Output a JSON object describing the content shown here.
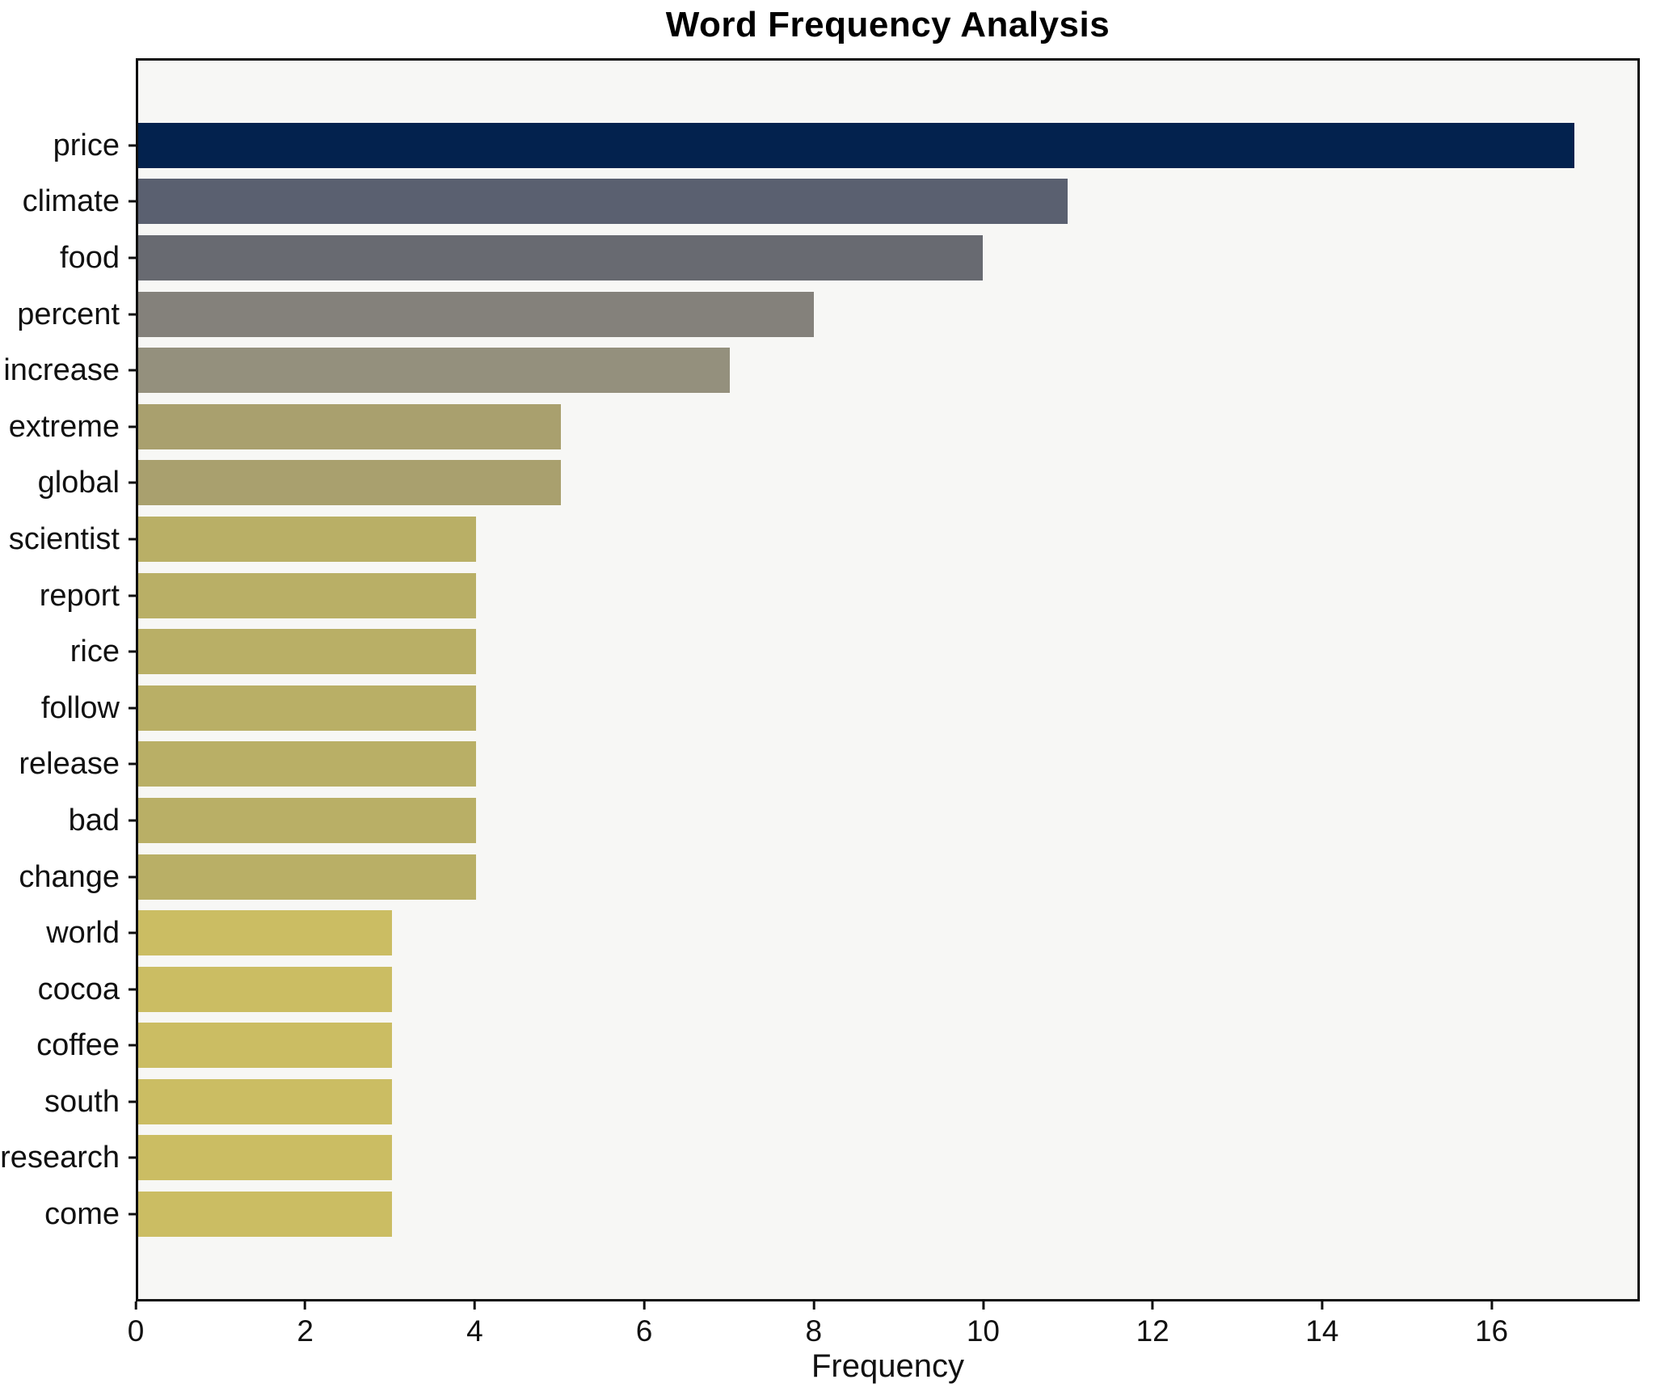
{
  "chart_data": {
    "type": "bar",
    "orientation": "horizontal",
    "title": "Word Frequency Analysis",
    "xlabel": "Frequency",
    "ylabel": "",
    "categories": [
      "price",
      "climate",
      "food",
      "percent",
      "increase",
      "extreme",
      "global",
      "scientist",
      "report",
      "rice",
      "follow",
      "release",
      "bad",
      "change",
      "world",
      "cocoa",
      "coffee",
      "south",
      "research",
      "come"
    ],
    "values": [
      17,
      11,
      10,
      8,
      7,
      5,
      5,
      4,
      4,
      4,
      4,
      4,
      4,
      4,
      3,
      3,
      3,
      3,
      3,
      3
    ],
    "bar_colors": [
      "#03224e",
      "#5a6070",
      "#686a71",
      "#84817b",
      "#94907d",
      "#a9a06e",
      "#a9a06e",
      "#b9af66",
      "#b9af66",
      "#b9af66",
      "#b9af66",
      "#b9af66",
      "#b9af66",
      "#b9af66",
      "#cbbd63",
      "#cbbd63",
      "#cbbd63",
      "#cbbd63",
      "#cbbd63",
      "#cbbd63"
    ],
    "xlim": [
      0,
      17.75
    ],
    "x_ticks": [
      0,
      2,
      4,
      6,
      8,
      10,
      12,
      14,
      16
    ],
    "grid": false,
    "legend": null,
    "plot_background": "#f7f7f5",
    "figure_background": "#ffffff",
    "spine_color": "#0f0f0f"
  }
}
